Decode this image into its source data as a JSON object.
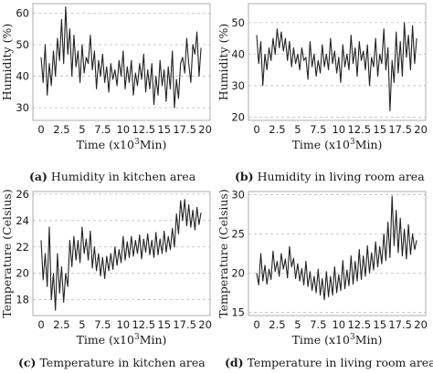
{
  "chart_data": [
    {
      "type": "line",
      "id": "a",
      "caption_tag": "(a)",
      "caption_text": "Humidity in kitchen area",
      "xlabel": "Time (x10",
      "xlabel_sup": "3",
      "xlabel_end": "Min)",
      "ylabel": "Humidity (%)",
      "xlim": [
        -1,
        20.6
      ],
      "ylim": [
        26,
        63
      ],
      "xticks": [
        0,
        2.5,
        5,
        7.5,
        10,
        12.5,
        15,
        17.5,
        20
      ],
      "xtick_labels": [
        "0",
        "2.5",
        "5",
        "7.5",
        "10",
        "12.5",
        "15",
        "17.5",
        "20"
      ],
      "yticks": [
        30,
        40,
        50,
        60
      ],
      "ytick_labels": [
        "30",
        "40",
        "50",
        "60"
      ],
      "grid": "horizontal dashed",
      "line_color": "#222222",
      "series": [
        {
          "x": [
            0,
            0.25,
            0.5,
            0.75,
            1,
            1.25,
            1.5,
            1.75,
            2,
            2.25,
            2.5,
            2.75,
            3,
            3.25,
            3.5,
            3.75,
            4,
            4.25,
            4.5,
            4.75,
            5,
            5.25,
            5.5,
            5.75,
            6,
            6.25,
            6.5,
            6.75,
            7,
            7.25,
            7.5,
            7.75,
            8,
            8.25,
            8.5,
            8.75,
            9,
            9.25,
            9.5,
            9.75,
            10,
            10.25,
            10.5,
            10.75,
            11,
            11.25,
            11.5,
            11.75,
            12,
            12.25,
            12.5,
            12.75,
            13,
            13.25,
            13.5,
            13.75,
            14,
            14.25,
            14.5,
            14.75,
            15,
            15.25,
            15.5,
            15.75,
            16,
            16.25,
            16.5,
            16.75,
            17,
            17.25,
            17.5,
            17.75,
            18,
            18.25,
            18.5,
            18.75,
            19,
            19.25,
            19.5
          ],
          "y": [
            46,
            38,
            50,
            34,
            44,
            37,
            48,
            40,
            52,
            45,
            58,
            44,
            62,
            47,
            55,
            40,
            53,
            43,
            48,
            38,
            50,
            41,
            46,
            44,
            53,
            42,
            48,
            36,
            45,
            40,
            47,
            38,
            43,
            35,
            44,
            39,
            42,
            37,
            45,
            40,
            48,
            36,
            43,
            38,
            45,
            34,
            41,
            37,
            44,
            39,
            47,
            35,
            42,
            36,
            44,
            31,
            40,
            34,
            45,
            37,
            42,
            32,
            43,
            36,
            48,
            30,
            39,
            33,
            44,
            46,
            41,
            52,
            44,
            38,
            50,
            47,
            54,
            40,
            49
          ]
        }
      ]
    },
    {
      "type": "line",
      "id": "b",
      "caption_tag": "(b)",
      "caption_text": "Humidity in living room area",
      "xlabel": "Time (x10",
      "xlabel_sup": "3",
      "xlabel_end": "Min)",
      "ylabel": "Humidity (%)",
      "xlim": [
        -1,
        20.6
      ],
      "ylim": [
        19,
        56
      ],
      "xticks": [
        0,
        2.5,
        5,
        7.5,
        10,
        12.5,
        15,
        17.5,
        20
      ],
      "xtick_labels": [
        "0",
        "2.5",
        "5",
        "7.5",
        "10",
        "12.5",
        "15",
        "17.5",
        "20"
      ],
      "yticks": [
        20,
        30,
        40,
        50
      ],
      "ytick_labels": [
        "20",
        "30",
        "40",
        "50"
      ],
      "grid": "horizontal dashed",
      "line_color": "#222222",
      "series": [
        {
          "x": [
            0,
            0.25,
            0.5,
            0.75,
            1,
            1.25,
            1.5,
            1.75,
            2,
            2.25,
            2.5,
            2.75,
            3,
            3.25,
            3.5,
            3.75,
            4,
            4.25,
            4.5,
            4.75,
            5,
            5.25,
            5.5,
            5.75,
            6,
            6.25,
            6.5,
            6.75,
            7,
            7.25,
            7.5,
            7.75,
            8,
            8.25,
            8.5,
            8.75,
            9,
            9.25,
            9.5,
            9.75,
            10,
            10.25,
            10.5,
            10.75,
            11,
            11.25,
            11.5,
            11.75,
            12,
            12.25,
            12.5,
            12.75,
            13,
            13.25,
            13.5,
            13.75,
            14,
            14.25,
            14.5,
            14.75,
            15,
            15.25,
            15.5,
            15.75,
            16,
            16.25,
            16.5,
            16.75,
            17,
            17.25,
            17.5,
            17.75,
            18,
            18.25,
            18.5,
            18.75,
            19,
            19.25,
            19.5
          ],
          "y": [
            46,
            37,
            44,
            30,
            40,
            35,
            42,
            38,
            45,
            40,
            48,
            42,
            47,
            41,
            45,
            38,
            44,
            36,
            42,
            37,
            40,
            35,
            42,
            38,
            39,
            32,
            44,
            36,
            40,
            33,
            38,
            34,
            43,
            36,
            40,
            35,
            45,
            37,
            41,
            34,
            39,
            31,
            43,
            36,
            40,
            35,
            46,
            37,
            42,
            33,
            44,
            38,
            41,
            35,
            43,
            30,
            39,
            36,
            45,
            33,
            40,
            37,
            48,
            35,
            42,
            22,
            38,
            31,
            47,
            34,
            44,
            33,
            50,
            39,
            46,
            35,
            49,
            37,
            45
          ]
        }
      ]
    },
    {
      "type": "line",
      "id": "c",
      "caption_tag": "(c)",
      "caption_text": "Temperature in kitchen area",
      "xlabel": "Time (x10",
      "xlabel_sup": "3",
      "xlabel_end": "Min)",
      "ylabel": "Temperature (Celsius)",
      "xlim": [
        -1,
        20.6
      ],
      "ylim": [
        16.8,
        26.2
      ],
      "xticks": [
        0,
        2.5,
        5,
        7.5,
        10,
        12.5,
        15,
        17.5,
        20
      ],
      "xtick_labels": [
        "0",
        "2.5",
        "5",
        "7.5",
        "10",
        "12.5",
        "15",
        "17.5",
        "20"
      ],
      "yticks": [
        18,
        20,
        22,
        24,
        26
      ],
      "ytick_labels": [
        "18",
        "20",
        "22",
        "24",
        "26"
      ],
      "grid": "horizontal dashed",
      "line_color": "#222222",
      "series": [
        {
          "x": [
            0,
            0.25,
            0.5,
            0.75,
            1,
            1.25,
            1.5,
            1.75,
            2,
            2.25,
            2.5,
            2.75,
            3,
            3.25,
            3.5,
            3.75,
            4,
            4.25,
            4.5,
            4.75,
            5,
            5.25,
            5.5,
            5.75,
            6,
            6.25,
            6.5,
            6.75,
            7,
            7.25,
            7.5,
            7.75,
            8,
            8.25,
            8.5,
            8.75,
            9,
            9.25,
            9.5,
            9.75,
            10,
            10.25,
            10.5,
            10.75,
            11,
            11.25,
            11.5,
            11.75,
            12,
            12.25,
            12.5,
            12.75,
            13,
            13.25,
            13.5,
            13.75,
            14,
            14.25,
            14.5,
            14.75,
            15,
            15.25,
            15.5,
            15.75,
            16,
            16.25,
            16.5,
            16.75,
            17,
            17.25,
            17.5,
            17.75,
            18,
            18.25,
            18.5,
            18.75,
            19,
            19.25,
            19.5
          ],
          "y": [
            22.5,
            19.5,
            21.5,
            19,
            23.5,
            18,
            20,
            17.2,
            21.5,
            18.5,
            20.5,
            17.8,
            20,
            19,
            22.5,
            20.5,
            22.8,
            21,
            22.5,
            20.8,
            23.5,
            21.5,
            22.6,
            21,
            23.2,
            20.4,
            22,
            20.2,
            21.5,
            19.8,
            21.2,
            19.6,
            21.3,
            20.2,
            21.5,
            20.3,
            22,
            20.6,
            21.8,
            20.8,
            22.8,
            21,
            22.4,
            21.2,
            22.8,
            21.3,
            22.5,
            21.5,
            22.9,
            21.1,
            22.6,
            21.6,
            23,
            21.4,
            22.5,
            21.2,
            23.1,
            21.4,
            22.6,
            21.5,
            23.2,
            21.6,
            22.8,
            21.8,
            23.4,
            22,
            24.5,
            23,
            25.5,
            24,
            25.6,
            23.6,
            25.2,
            23.5,
            24.8,
            23.3,
            25,
            23.7,
            24.6
          ]
        }
      ]
    },
    {
      "type": "line",
      "id": "d",
      "caption_tag": "(d)",
      "caption_text": "Temperature in living room area",
      "xlabel": "Time (x10",
      "xlabel_sup": "3",
      "xlabel_end": "Min)",
      "ylabel": "Temperature (Celsius)",
      "xlim": [
        -1,
        20.6
      ],
      "ylim": [
        14.6,
        30.4
      ],
      "xticks": [
        0,
        2.5,
        5,
        7.5,
        10,
        12.5,
        15,
        17.5,
        20
      ],
      "xtick_labels": [
        "0",
        "2.5",
        "5",
        "7.5",
        "10",
        "12.5",
        "15",
        "17.5",
        "20"
      ],
      "yticks": [
        15,
        20,
        25,
        30
      ],
      "ytick_labels": [
        "15",
        "20",
        "25",
        "30"
      ],
      "grid": "horizontal dashed",
      "line_color": "#222222",
      "series": [
        {
          "x": [
            0,
            0.25,
            0.5,
            0.75,
            1,
            1.25,
            1.5,
            1.75,
            2,
            2.25,
            2.5,
            2.75,
            3,
            3.25,
            3.5,
            3.75,
            4,
            4.25,
            4.5,
            4.75,
            5,
            5.25,
            5.5,
            5.75,
            6,
            6.25,
            6.5,
            6.75,
            7,
            7.25,
            7.5,
            7.75,
            8,
            8.25,
            8.5,
            8.75,
            9,
            9.25,
            9.5,
            9.75,
            10,
            10.25,
            10.5,
            10.75,
            11,
            11.25,
            11.5,
            11.75,
            12,
            12.25,
            12.5,
            12.75,
            13,
            13.25,
            13.5,
            13.75,
            14,
            14.25,
            14.5,
            14.75,
            15,
            15.25,
            15.5,
            15.75,
            16,
            16.25,
            16.5,
            16.75,
            17,
            17.25,
            17.5,
            17.75,
            18,
            18.25,
            18.5,
            18.75,
            19,
            19.25,
            19.5
          ],
          "y": [
            20,
            18.5,
            22.5,
            19,
            21,
            18.6,
            20.5,
            19.2,
            22.8,
            20.2,
            21.5,
            19.6,
            22.5,
            20.5,
            21.8,
            19.4,
            23.4,
            20.8,
            21.9,
            19.3,
            21.2,
            19,
            20.6,
            18.5,
            21.5,
            18.3,
            20.2,
            17.8,
            19.6,
            17.5,
            20.5,
            17.2,
            19.3,
            16.6,
            20.2,
            17,
            19.6,
            17.2,
            20.8,
            17.5,
            19.8,
            17.8,
            21.6,
            18,
            20.4,
            18.4,
            22.2,
            18.6,
            21.5,
            19,
            23,
            19.2,
            22.2,
            19.6,
            23.5,
            20,
            22.6,
            20.4,
            24,
            20.8,
            23.4,
            21.2,
            25,
            21.6,
            26.5,
            22,
            29.8,
            23.5,
            28,
            22.6,
            27,
            22.2,
            25.6,
            21.8,
            26.2,
            22.4,
            25,
            23,
            24.2
          ]
        }
      ]
    }
  ]
}
